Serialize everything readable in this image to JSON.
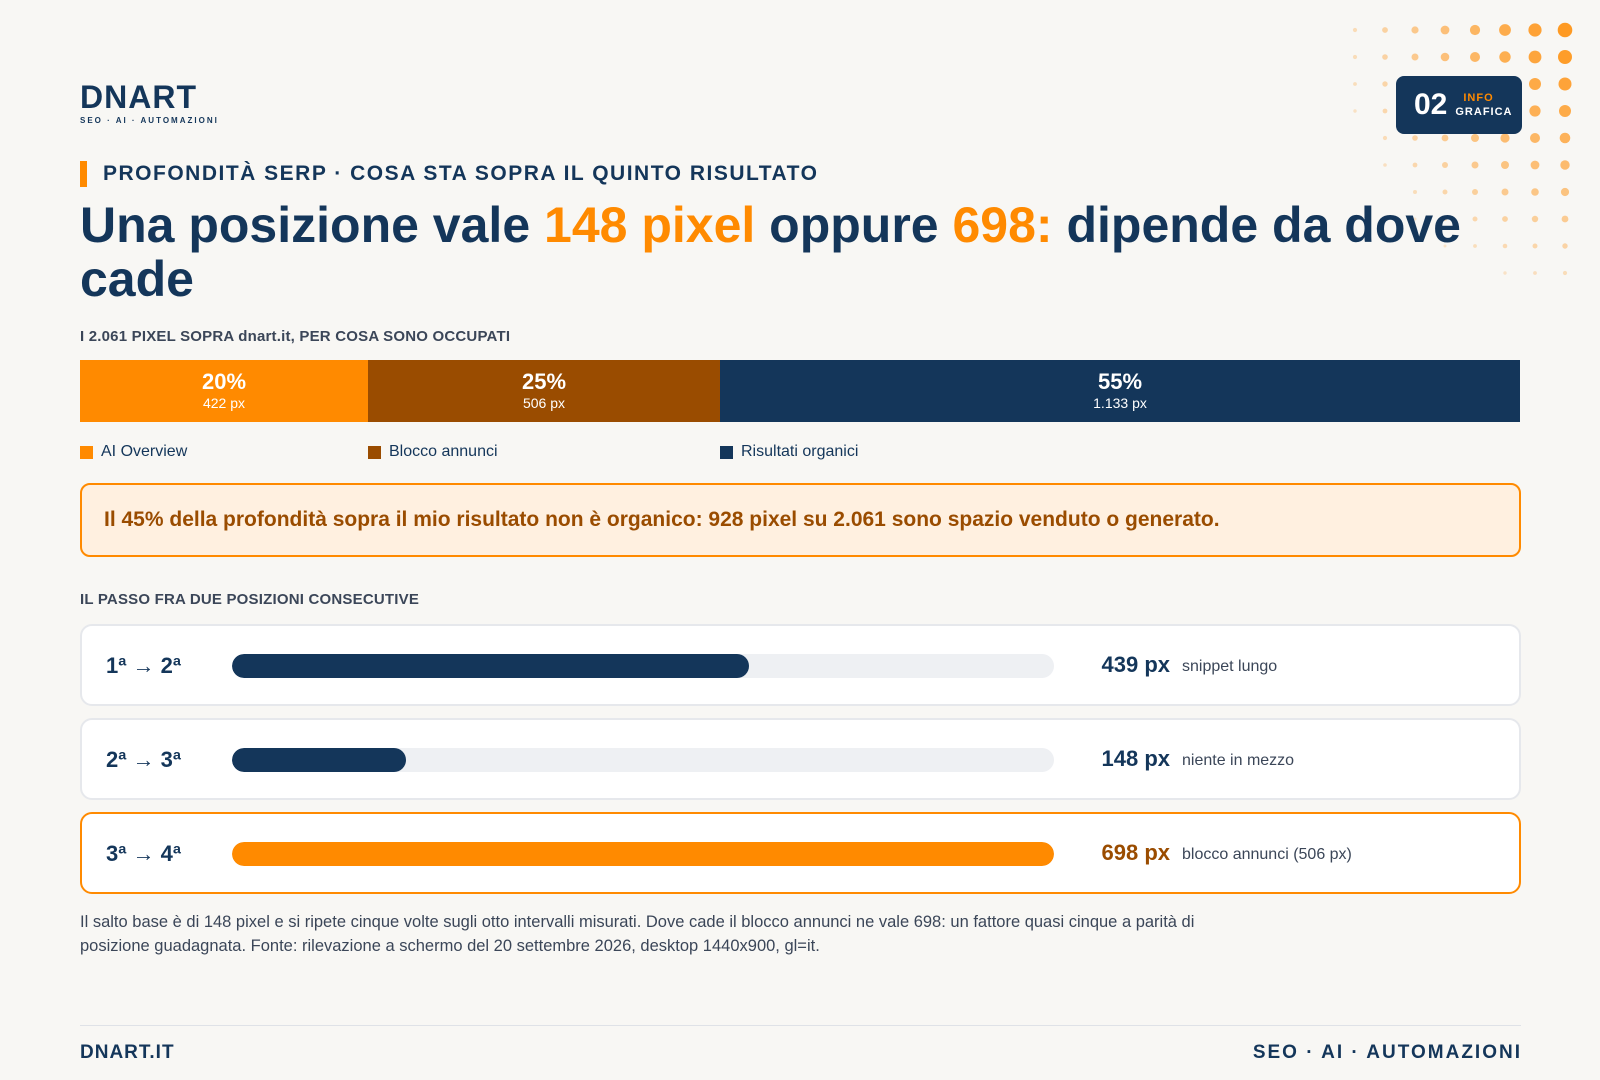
{
  "brand": {
    "logo_text": "DNART",
    "logo_sub": "SEO · AI · AUTOMAZIONI",
    "accent": "#ff8a00",
    "navy": "#14365a",
    "brown": "#9a4c00"
  },
  "badge": {
    "number": "02",
    "line1": "INFO",
    "line2": "GRAFICA"
  },
  "kicker": "PROFONDITÀ SERP · COSA STA SOPRA IL QUINTO RISULTATO",
  "headline": {
    "p1": "Una posizione vale ",
    "h1": "148 pixel",
    "p2": " oppure ",
    "h2": "698:",
    "p3": " dipende da dove cade"
  },
  "stack_label": "I 2.061 PIXEL SOPRA dnart.it, PER COSA SONO OCCUPATI",
  "callout": "Il 45% della profondità sopra il mio risultato non è organico: 928 pixel su 2.061 sono spazio venduto o generato.",
  "steps_label": "IL PASSO FRA DUE POSIZIONI CONSECUTIVE",
  "chart_data": [
    {
      "type": "bar",
      "orientation": "horizontal-stacked",
      "title": "I 2.061 PIXEL SOPRA dnart.it, PER COSA SONO OCCUPATI",
      "total_px": 2061,
      "series": [
        {
          "name": "AI Overview",
          "percent": "20%",
          "px": 422,
          "px_label": "422 px",
          "color": "#ff8a00"
        },
        {
          "name": "Blocco annunci",
          "percent": "25%",
          "px": 506,
          "px_label": "506 px",
          "color": "#9a4c00"
        },
        {
          "name": "Risultati organici",
          "percent": "55%",
          "px": 1133,
          "px_label": "1.133 px",
          "color": "#14365a"
        }
      ],
      "legend": "bottom"
    },
    {
      "type": "bar",
      "orientation": "horizontal",
      "title": "IL PASSO FRA DUE POSIZIONI CONSECUTIVE",
      "xlim": [
        0,
        698
      ],
      "rows": [
        {
          "label": "1ª → 2ª",
          "value": 439,
          "value_label": "439 px",
          "note": "snippet lungo",
          "color": "#14365a",
          "highlight": false
        },
        {
          "label": "2ª → 3ª",
          "value": 148,
          "value_label": "148 px",
          "note": "niente in mezzo",
          "color": "#14365a",
          "highlight": false
        },
        {
          "label": "3ª → 4ª",
          "value": 698,
          "value_label": "698 px",
          "note": "blocco annunci (506 px)",
          "color": "#ff8a00",
          "highlight": true
        }
      ]
    }
  ],
  "footnote": "Il salto base è di 148 pixel e si ripete cinque volte sugli otto intervalli misurati. Dove cade il blocco annunci ne vale 698: un fattore quasi cinque a parità di posizione guadagnata. Fonte: rilevazione a schermo del 20 settembre 2026, desktop 1440x900, gl=it.",
  "footer": {
    "left": "DNART.IT",
    "right": "SEO · AI · AUTOMAZIONI"
  }
}
